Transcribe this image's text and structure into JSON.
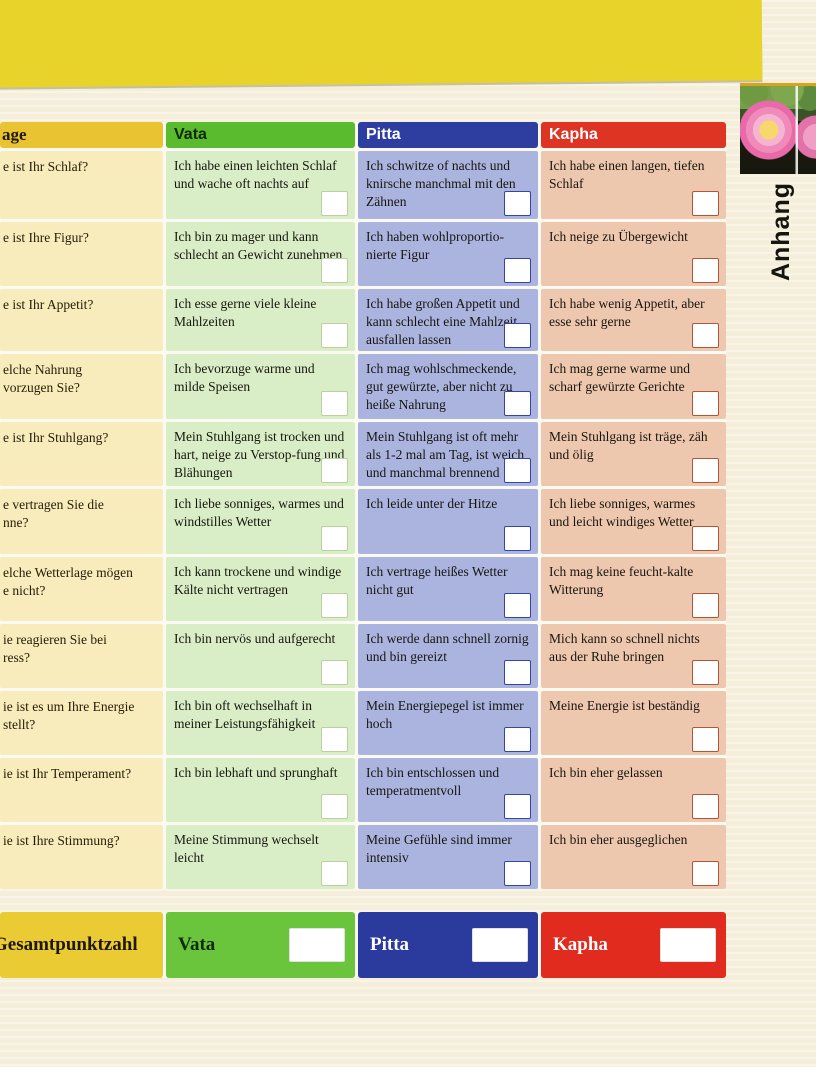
{
  "side_label": "Anhang",
  "colors": {
    "banner_yellow": "#e8d32b",
    "page_cream": "#f4eedb",
    "frage_header": "#e9c331",
    "frage_cell": "#f8ecbc",
    "vata_header": "#5abb2f",
    "vata_cell": "#d9edc6",
    "pitta_header": "#2d3da0",
    "pitta_cell": "#abb3df",
    "kapha_header": "#de3424",
    "kapha_cell": "#eec7af"
  },
  "table": {
    "headers": [
      "age",
      "Vata",
      "Pitta",
      "Kapha"
    ],
    "rows": [
      {
        "question": "e ist Ihr Schlaf?",
        "vata": "Ich habe einen leichten Schlaf und wache oft nachts auf",
        "pitta": "Ich schwitze of nachts und knirsche manchmal mit den Zähnen",
        "kapha": "Ich habe einen langen, tiefen Schlaf"
      },
      {
        "question": "e ist Ihre Figur?",
        "vata": "Ich bin zu mager und kann schlecht an Gewicht zunehmen",
        "pitta": "Ich haben wohlproportio-nierte Figur",
        "kapha": "Ich neige zu Übergewicht"
      },
      {
        "question": "e ist Ihr Appetit?",
        "vata": "Ich esse gerne viele kleine Mahlzeiten",
        "pitta": "Ich habe großen Appetit und kann schlecht eine Mahlzeit ausfallen lassen",
        "kapha": "Ich habe wenig Appetit, aber esse sehr gerne"
      },
      {
        "question": "elche Nahrung\nvorzugen Sie?",
        "vata": "Ich bevorzuge warme und milde Speisen",
        "pitta": "Ich mag wohlschmeckende, gut gewürzte, aber nicht zu heiße Nahrung",
        "kapha": "Ich mag gerne warme und scharf gewürzte Gerichte"
      },
      {
        "question": "e ist Ihr Stuhlgang?",
        "vata": "Mein Stuhlgang ist trocken und hart, neige zu Verstop-fung und Blähungen",
        "pitta": "Mein Stuhlgang ist oft mehr als 1-2 mal am Tag, ist weich und manchmal brennend",
        "kapha": "Mein Stuhlgang ist träge, zäh und ölig"
      },
      {
        "question": "e vertragen Sie die\nnne?",
        "vata": "Ich liebe sonniges, warmes und windstilles Wetter",
        "pitta": "Ich leide unter der Hitze",
        "kapha": "Ich liebe sonniges, warmes und leicht windiges Wetter"
      },
      {
        "question": "elche Wetterlage mögen\ne nicht?",
        "vata": "Ich kann trockene und windige Kälte nicht vertragen",
        "pitta": "Ich vertrage heißes Wetter nicht gut",
        "kapha": "Ich mag keine feucht-kalte Witterung"
      },
      {
        "question": "ie reagieren Sie bei\nress?",
        "vata": "Ich bin nervös und aufgerecht",
        "pitta": "Ich werde dann schnell zornig und bin gereizt",
        "kapha": "Mich kann so schnell nichts aus der Ruhe bringen"
      },
      {
        "question": "ie ist es um Ihre Energie\nstellt?",
        "vata": "Ich bin oft wechselhaft in meiner Leistungsfähigkeit",
        "pitta": "Mein Energiepegel ist immer hoch",
        "kapha": "Meine Energie ist beständig"
      },
      {
        "question": "ie ist Ihr Temperament?",
        "vata": "Ich bin lebhaft und sprunghaft",
        "pitta": "Ich bin entschlossen und temperatmentvoll",
        "kapha": "Ich bin eher gelassen"
      },
      {
        "question": "ie ist Ihre Stimmung?",
        "vata": "Meine Stimmung wechselt leicht",
        "pitta": "Meine Gefühle sind immer intensiv",
        "kapha": "Ich bin eher ausgeglichen"
      }
    ]
  },
  "footer": {
    "total_label": "Gesamtpunktzahl",
    "vata_label": "Vata",
    "pitta_label": "Pitta",
    "kapha_label": "Kapha",
    "scores": {
      "vata": "",
      "pitta": "",
      "kapha": ""
    }
  }
}
